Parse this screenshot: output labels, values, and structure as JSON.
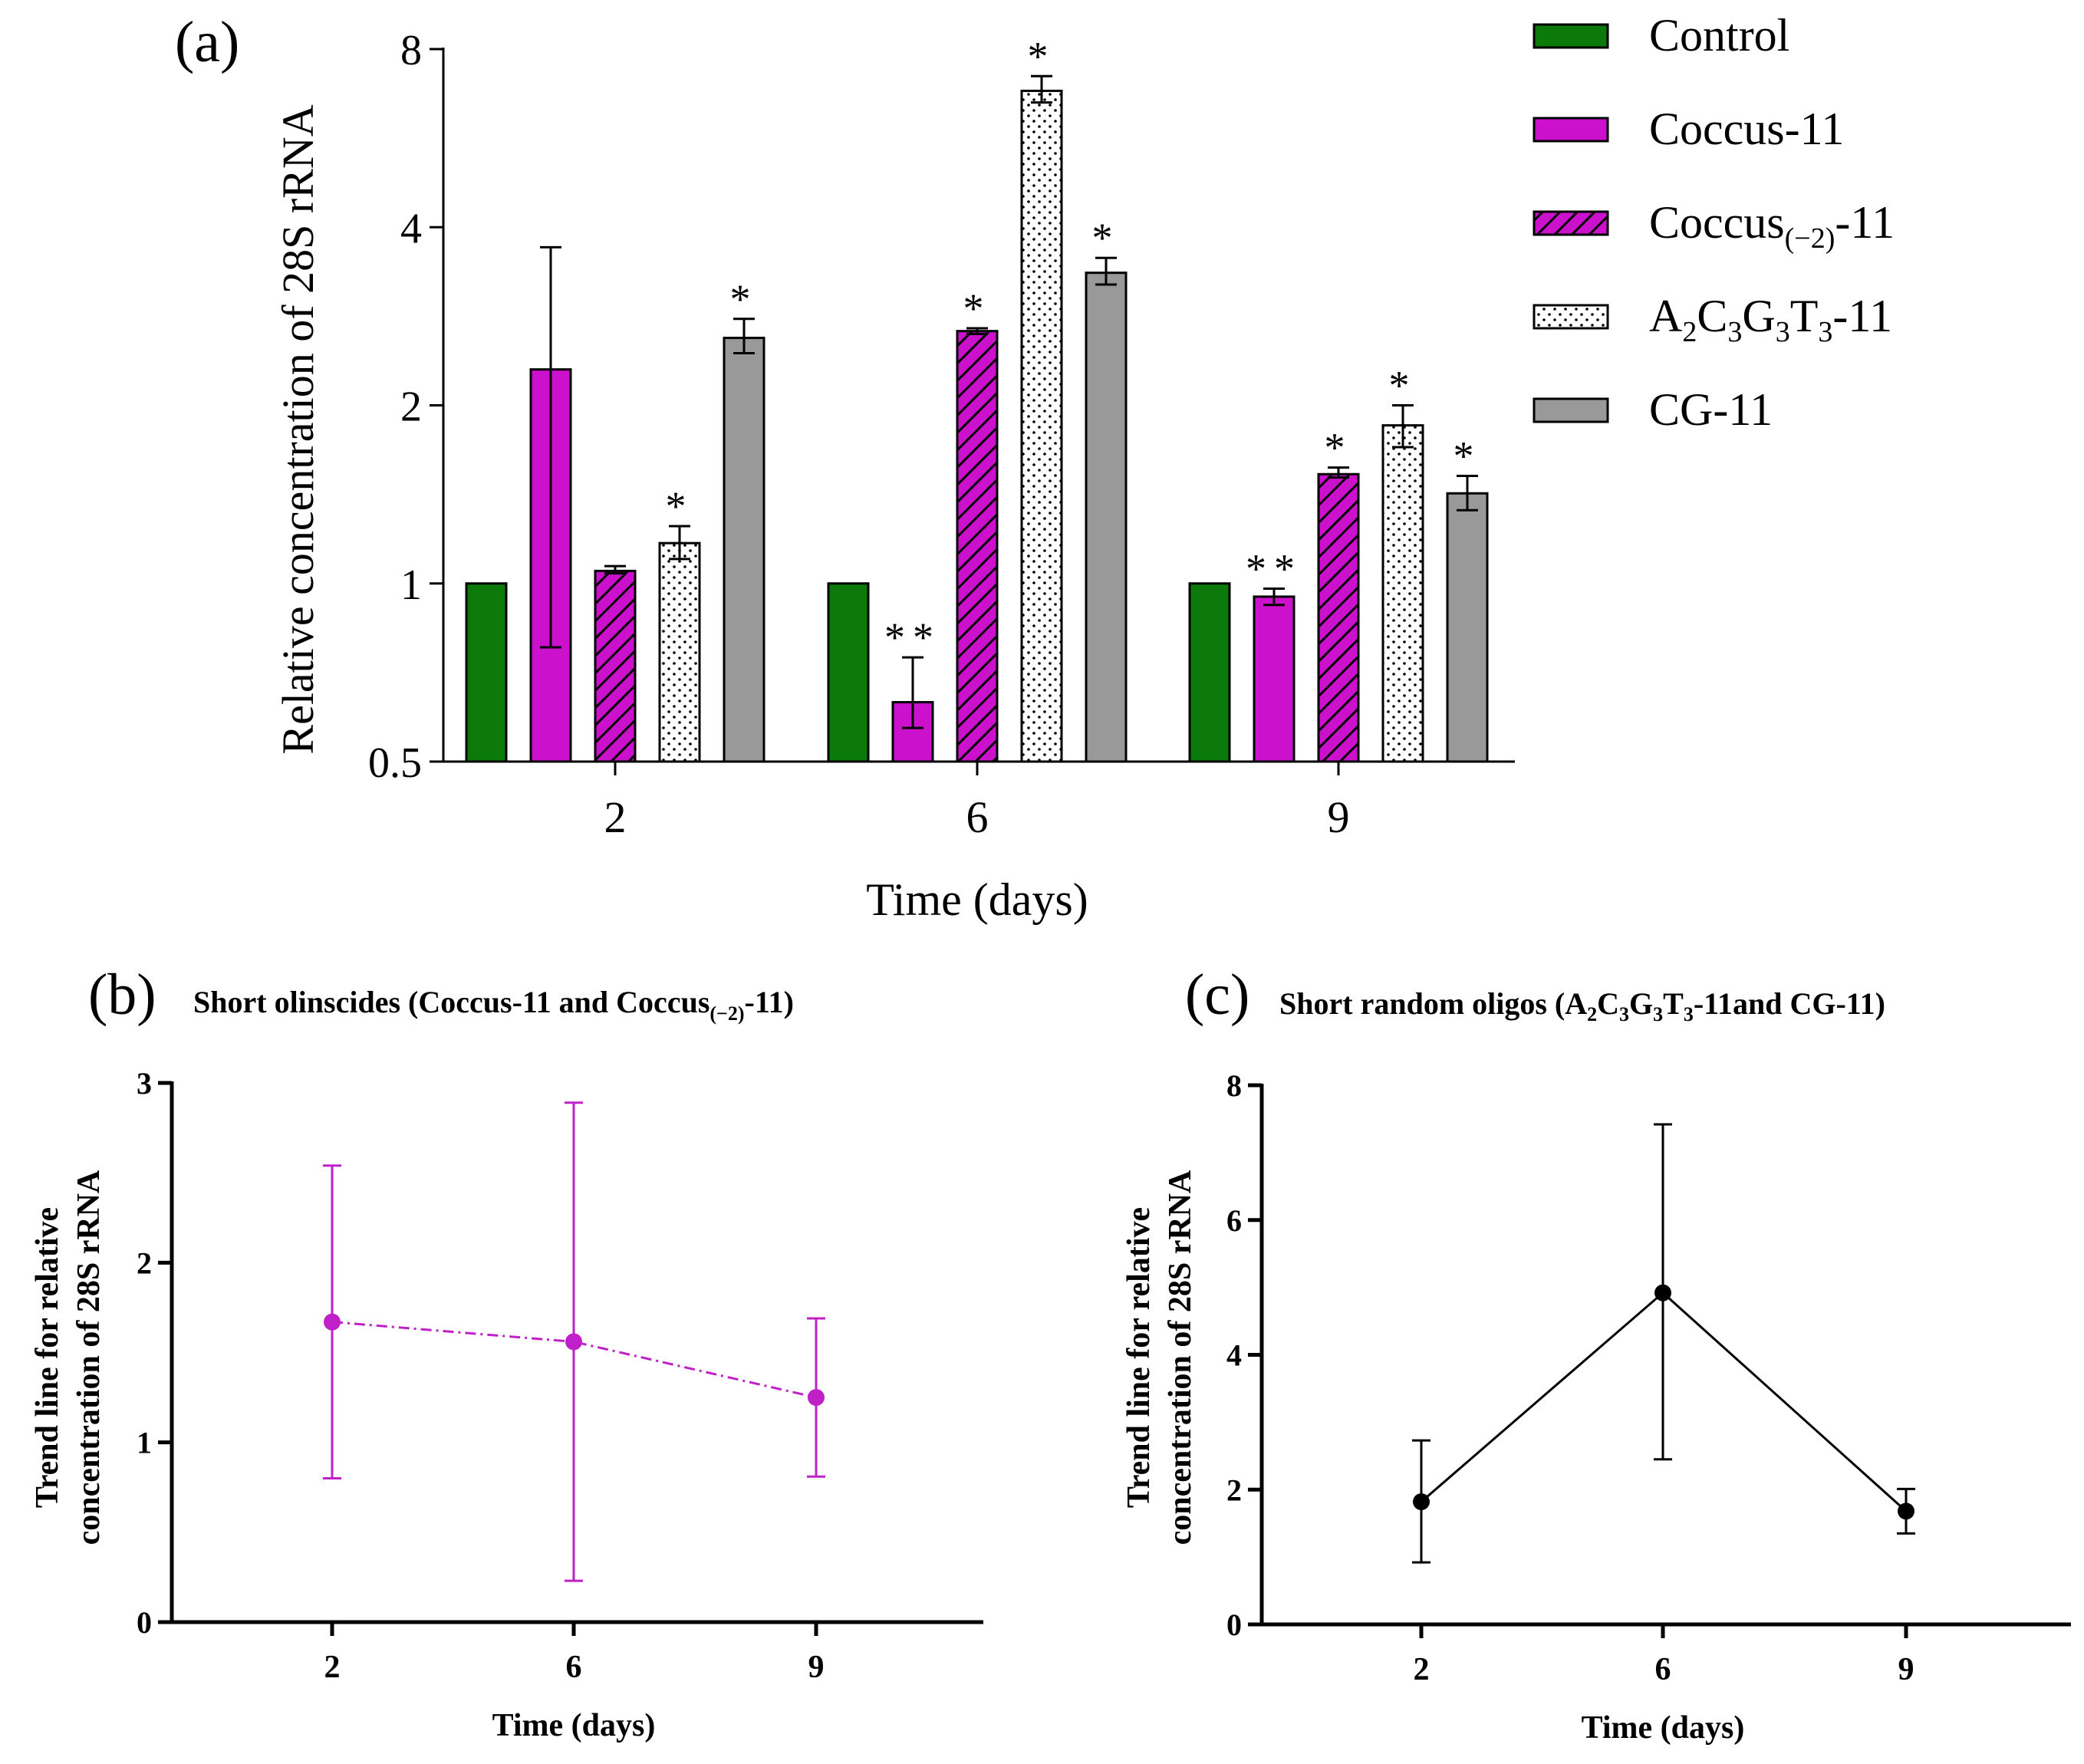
{
  "chart_data": [
    {
      "panel": "(a)",
      "type": "bar",
      "yscale": "log2",
      "ylabel": "Relative concentration of 28S rRNA",
      "xlabel": "Time (days)",
      "ylim": [
        0.5,
        8
      ],
      "yticks": [
        0.5,
        1,
        2,
        4,
        8
      ],
      "ytick_labels": [
        "0.5",
        "1",
        "2",
        "4",
        "8"
      ],
      "categories": [
        "2",
        "6",
        "9"
      ],
      "series": [
        {
          "name": "Control",
          "pattern": "solid",
          "color": "#0b7a0b",
          "values": [
            1.0,
            1.0,
            1.0
          ],
          "err": [
            0,
            0,
            0
          ],
          "sig": [
            "",
            "",
            ""
          ]
        },
        {
          "name": "Coccus-11",
          "pattern": "solid",
          "color": "#cc11cc",
          "values": [
            2.3,
            0.63,
            0.95
          ],
          "err_low": [
            0.78,
            0.57,
            0.92
          ],
          "err_high": [
            3.7,
            0.75,
            0.98
          ],
          "sig": [
            "",
            "**",
            "**"
          ]
        },
        {
          "name": "Coccus(−2)-11",
          "pattern": "hatch",
          "color": "#cc11cc",
          "values": [
            1.05,
            2.67,
            1.53
          ],
          "err_low": [
            1.04,
            2.64,
            1.51
          ],
          "err_high": [
            1.07,
            2.7,
            1.57
          ],
          "sig": [
            "",
            "*",
            "*"
          ]
        },
        {
          "name": "A2C3G3T3-11",
          "pattern": "dots",
          "color": "#ffffff",
          "values": [
            1.17,
            6.8,
            1.85
          ],
          "err_low": [
            1.1,
            6.5,
            1.7
          ],
          "err_high": [
            1.25,
            7.2,
            2.0
          ],
          "sig": [
            "*",
            "*",
            "*"
          ]
        },
        {
          "name": "CG-11",
          "pattern": "solid",
          "color": "#999999",
          "values": [
            2.6,
            3.35,
            1.42
          ],
          "err_low": [
            2.45,
            3.2,
            1.33
          ],
          "err_high": [
            2.8,
            3.55,
            1.52
          ],
          "sig": [
            "*",
            "*",
            "*"
          ]
        }
      ],
      "legend": {
        "placement": "right",
        "entries": [
          {
            "name": "Control",
            "base": "",
            "sub": "",
            "rest": "Control",
            "html": "Control"
          },
          {
            "name": "Coccus-11",
            "html": "Coccus-11"
          },
          {
            "name": "Coccus(−2)-11",
            "pre": "Coccus",
            "sub": "(−2)",
            "post": "-11"
          },
          {
            "name": "A2C3G3T3-11",
            "parts": [
              "A",
              "2",
              "C",
              "3",
              "G",
              "3",
              "T",
              "3",
              "-11"
            ]
          },
          {
            "name": "CG-11",
            "html": "CG-11"
          }
        ]
      }
    },
    {
      "panel": "(b)",
      "type": "line",
      "title_pre": "Short olinscides (Coccus-11 and Coccus",
      "title_sub": "(−2)",
      "title_post": "-11)",
      "ylabel_line1": "Trend line for relative",
      "ylabel_line2": "concentration of 28S rRNA",
      "xlabel": "Time (days)",
      "x": [
        "2",
        "6",
        "9"
      ],
      "y": [
        1.67,
        1.56,
        1.25
      ],
      "err_low": [
        0.8,
        0.23,
        0.81
      ],
      "err_high": [
        2.54,
        2.89,
        1.69
      ],
      "ylim": [
        0,
        3
      ],
      "yticks": [
        "0",
        "1",
        "2",
        "3"
      ],
      "line_style": "dash-dot",
      "color": "#c020c8"
    },
    {
      "panel": "(c)",
      "type": "line",
      "title_pre": "Short random oligos (",
      "title_parts": [
        "A",
        "2",
        "C",
        "3",
        "G",
        "3",
        "T",
        "3",
        "-11and CG-11)"
      ],
      "ylabel_line1": "Trend line for relative",
      "ylabel_line2": "concentration of 28S rRNA",
      "xlabel": "Time (days)",
      "x": [
        "2",
        "6",
        "9"
      ],
      "y": [
        1.82,
        4.92,
        1.68
      ],
      "err_low": [
        0.92,
        2.45,
        1.35
      ],
      "err_high": [
        2.73,
        7.42,
        2.01
      ],
      "ylim": [
        0,
        8
      ],
      "yticks": [
        "0",
        "2",
        "4",
        "6",
        "8"
      ],
      "line_style": "solid",
      "color": "#000000"
    }
  ]
}
